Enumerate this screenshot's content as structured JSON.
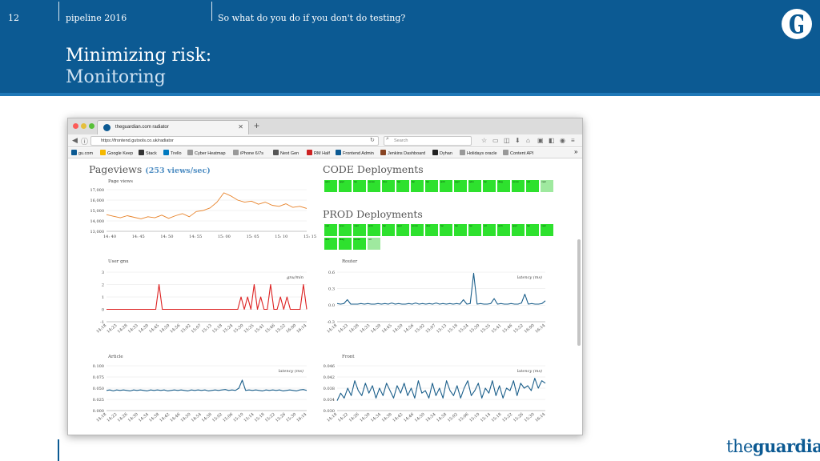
{
  "slide": {
    "number": "12",
    "event": "pipeline 2016",
    "section": "So what do you do if you don't do testing?",
    "title": "Minimizing risk:",
    "subtitle": "Monitoring",
    "footer_brand_the": "the",
    "footer_brand_name": "guardian"
  },
  "browser": {
    "tab_title": "theguardian.com radiator",
    "url": "https://frontend.gutools.co.uk/radiator",
    "search_placeholder": "Search",
    "bookmarks": [
      {
        "label": "gu.com",
        "color": "#0c5a93"
      },
      {
        "label": "Google Keep",
        "color": "#f5b800"
      },
      {
        "label": "Stack",
        "color": "#333333"
      },
      {
        "label": "Trello",
        "color": "#0079bf"
      },
      {
        "label": "Cyber Heatmap",
        "color": "#999999"
      },
      {
        "label": "iPhone 6/7s",
        "color": "#999999"
      },
      {
        "label": "Next Gen",
        "color": "#555555"
      },
      {
        "label": "RM Half",
        "color": "#cc2222"
      },
      {
        "label": "Frontend Admin",
        "color": "#0c5a93"
      },
      {
        "label": "Jenkins Dashboard",
        "color": "#884422"
      },
      {
        "label": "Dyhan",
        "color": "#222222"
      },
      {
        "label": "Holidays oracle",
        "color": "#999999"
      },
      {
        "label": "Content API",
        "color": "#999999"
      }
    ],
    "bookmarks_overflow": "»"
  },
  "radiator": {
    "pageviews_title": "Pageviews",
    "pageviews_rate": "(253 views/sec)",
    "code_title": "CODE Deployments",
    "prod_title": "PROD Deployments",
    "code_deploys": [
      "adm",
      "appl",
      "fac",
      "comm",
      "disc",
      "fac",
      "fac",
      "fac",
      "arch",
      "appl",
      "adm",
      "fac",
      "diag",
      "comm",
      "ncl",
      "mail"
    ],
    "prod_deploys": [
      "mal",
      "prev",
      "mail",
      "arch",
      "fac",
      "appl",
      "comm",
      "disc",
      "fac",
      "fac",
      "fac",
      "ncl",
      "arch",
      "appl",
      "fac",
      "mail",
      "disc",
      "diag",
      "comm",
      "ncl"
    ]
  },
  "chart_data": [
    {
      "type": "line",
      "title": "Page views",
      "color": "#e8832a",
      "ylim": [
        13000,
        17000
      ],
      "yticks": [
        "13,000",
        "14,000",
        "15,000",
        "16,000",
        "17,000"
      ],
      "xticks": [
        "14: 40",
        "14: 45",
        "14: 50",
        "14: 55",
        "15: 00",
        "15: 05",
        "15: 10",
        "15: 15"
      ],
      "x": [
        0,
        1,
        2,
        3,
        4,
        5,
        6,
        7,
        8,
        9,
        10,
        11,
        12,
        13,
        14,
        15,
        16,
        17,
        18,
        19,
        20,
        21,
        22,
        23,
        24,
        25,
        26,
        27,
        28,
        29
      ],
      "values": [
        14600,
        14450,
        14300,
        14500,
        14350,
        14200,
        14400,
        14300,
        14550,
        14250,
        14500,
        14700,
        14400,
        14900,
        15000,
        15250,
        15800,
        16700,
        16400,
        16000,
        15800,
        15900,
        15600,
        15800,
        15500,
        15400,
        15650,
        15300,
        15400,
        15200
      ]
    },
    {
      "type": "line",
      "title": "User gnu",
      "legend": "gnu/min",
      "color": "#dd2222",
      "ylim": [
        -1,
        3
      ],
      "yticks": [
        "-1",
        "0",
        "1",
        "2",
        "3"
      ],
      "xticks": [
        "14:18",
        "14:23",
        "14:28",
        "14:33",
        "14:39",
        "14:45",
        "14:50",
        "14:56",
        "15:02",
        "15:07",
        "15:13",
        "15:18",
        "15:24",
        "15:30",
        "15:35",
        "15:41",
        "15:46",
        "15:52",
        "16:00",
        "16:14"
      ],
      "values": [
        0,
        0,
        0,
        0,
        0,
        0,
        0,
        0,
        0,
        0,
        0,
        0,
        0,
        0,
        0,
        0,
        2,
        0,
        0,
        0,
        0,
        0,
        0,
        0,
        0,
        0,
        0,
        0,
        0,
        0,
        0,
        0,
        0,
        0,
        0,
        0,
        0,
        0,
        0,
        0,
        0,
        1,
        0,
        1,
        0,
        2,
        0,
        1,
        0,
        0,
        2,
        0,
        0,
        1,
        0,
        1,
        0,
        0,
        0,
        0,
        2,
        0
      ]
    },
    {
      "type": "line",
      "title": "Router",
      "legend": "latency (ms)",
      "color": "#1a5e8a",
      "ylim": [
        -0.3,
        0.6
      ],
      "yticks": [
        "-0.3",
        "0.0",
        "0.3",
        "0.6"
      ],
      "xticks": [
        "14:18",
        "14:23",
        "14:28",
        "14:33",
        "14:39",
        "14:45",
        "14:50",
        "14:56",
        "15:02",
        "15:07",
        "15:13",
        "15:18",
        "15:24",
        "15:30",
        "15:35",
        "15:41",
        "15:46",
        "15:52",
        "16:00",
        "16:14"
      ],
      "values": [
        0.03,
        0.02,
        0.03,
        0.1,
        0.02,
        0.02,
        0.02,
        0.03,
        0.02,
        0.03,
        0.02,
        0.02,
        0.03,
        0.02,
        0.03,
        0.02,
        0.04,
        0.02,
        0.03,
        0.02,
        0.02,
        0.03,
        0.02,
        0.04,
        0.02,
        0.03,
        0.02,
        0.03,
        0.02,
        0.04,
        0.02,
        0.03,
        0.02,
        0.03,
        0.02,
        0.03,
        0.02,
        0.1,
        0.02,
        0.03,
        0.58,
        0.02,
        0.03,
        0.02,
        0.02,
        0.03,
        0.12,
        0.02,
        0.03,
        0.02,
        0.02,
        0.03,
        0.02,
        0.02,
        0.04,
        0.2,
        0.02,
        0.03,
        0.02,
        0.02,
        0.03,
        0.08
      ]
    },
    {
      "type": "line",
      "title": "Article",
      "legend": "latency (ms)",
      "color": "#1a5e8a",
      "ylim": [
        0,
        0.1
      ],
      "yticks": [
        "0.000",
        "0.025",
        "0.050",
        "0.075",
        "0.100"
      ],
      "xticks": [
        "14:18",
        "14:22",
        "14:26",
        "14:30",
        "14:34",
        "14:38",
        "14:42",
        "14:46",
        "14:50",
        "14:54",
        "14:58",
        "15:02",
        "15:06",
        "15:10",
        "15:14",
        "15:18",
        "15:22",
        "15:26",
        "15:30",
        "16:14"
      ],
      "values": [
        0.045,
        0.046,
        0.044,
        0.046,
        0.045,
        0.046,
        0.045,
        0.044,
        0.046,
        0.045,
        0.046,
        0.045,
        0.044,
        0.046,
        0.045,
        0.046,
        0.045,
        0.046,
        0.044,
        0.045,
        0.046,
        0.045,
        0.046,
        0.045,
        0.044,
        0.046,
        0.045,
        0.046,
        0.045,
        0.046,
        0.044,
        0.045,
        0.046,
        0.045,
        0.046,
        0.047,
        0.045,
        0.046,
        0.045,
        0.05,
        0.068,
        0.045,
        0.046,
        0.045,
        0.046,
        0.045,
        0.044,
        0.046,
        0.045,
        0.046,
        0.045,
        0.046,
        0.044,
        0.045,
        0.046,
        0.045,
        0.044,
        0.046,
        0.047,
        0.045
      ]
    },
    {
      "type": "line",
      "title": "Front",
      "legend": "latency (ms)",
      "color": "#1a5e8a",
      "ylim": [
        0.03,
        0.048
      ],
      "yticks": [
        "0.030",
        "0.034",
        "0.038",
        "0.042",
        "0.046"
      ],
      "xticks": [
        "14:18",
        "14:22",
        "14:26",
        "14:30",
        "14:34",
        "14:38",
        "14:42",
        "14:46",
        "14:50",
        "14:54",
        "14:58",
        "15:02",
        "15:06",
        "15:10",
        "15:14",
        "15:18",
        "15:22",
        "15:26",
        "15:30",
        "16:14"
      ],
      "values": [
        0.034,
        0.037,
        0.035,
        0.039,
        0.036,
        0.042,
        0.038,
        0.036,
        0.041,
        0.037,
        0.04,
        0.035,
        0.039,
        0.036,
        0.041,
        0.038,
        0.035,
        0.04,
        0.037,
        0.041,
        0.036,
        0.039,
        0.035,
        0.042,
        0.037,
        0.038,
        0.035,
        0.041,
        0.036,
        0.039,
        0.035,
        0.042,
        0.038,
        0.036,
        0.04,
        0.035,
        0.039,
        0.042,
        0.036,
        0.038,
        0.041,
        0.035,
        0.039,
        0.037,
        0.042,
        0.036,
        0.04,
        0.035,
        0.039,
        0.038,
        0.042,
        0.036,
        0.041,
        0.039,
        0.04,
        0.038,
        0.043,
        0.039,
        0.042,
        0.041
      ]
    }
  ]
}
